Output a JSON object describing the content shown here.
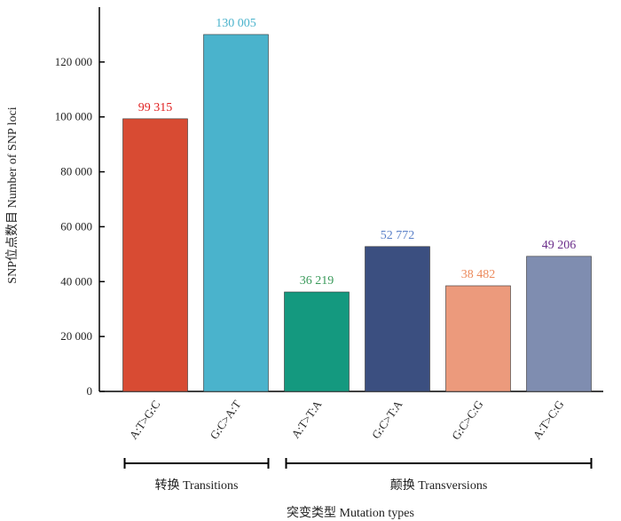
{
  "chart_data": {
    "type": "bar",
    "categories": [
      "A:T>G:C",
      "G:C>A:T",
      "A:T>T:A",
      "G:C>T:A",
      "G:C>C:G",
      "A:T>C:G"
    ],
    "values": [
      99315,
      130005,
      36219,
      52772,
      38482,
      49206
    ],
    "value_labels": [
      "99 315",
      "130 005",
      "36 219",
      "52 772",
      "38 482",
      "49 206"
    ],
    "colors": [
      "#d84b33",
      "#4ab3cc",
      "#14997f",
      "#3b4f80",
      "#ec9a7c",
      "#7f8db0"
    ],
    "label_colors": [
      "#e02020",
      "#4ab3cc",
      "#3a9a5a",
      "#5a80c8",
      "#ec8a5c",
      "#6a2d8a"
    ],
    "ylabel": "SNP位点数目 Number of SNP loci",
    "xlabel": "突变类型 Mutation types",
    "ylim": [
      0,
      140000
    ],
    "yticks": [
      0,
      20000,
      40000,
      60000,
      80000,
      100000,
      120000
    ],
    "ytick_labels": [
      "0",
      "20 000",
      "40 000",
      "60 000",
      "80 000",
      "100 000",
      "120 000"
    ],
    "groups": [
      {
        "label": "转换 Transitions",
        "span": [
          0,
          1
        ]
      },
      {
        "label": "颠换 Transversions",
        "span": [
          2,
          5
        ]
      }
    ],
    "grid": false,
    "legend": "none"
  }
}
